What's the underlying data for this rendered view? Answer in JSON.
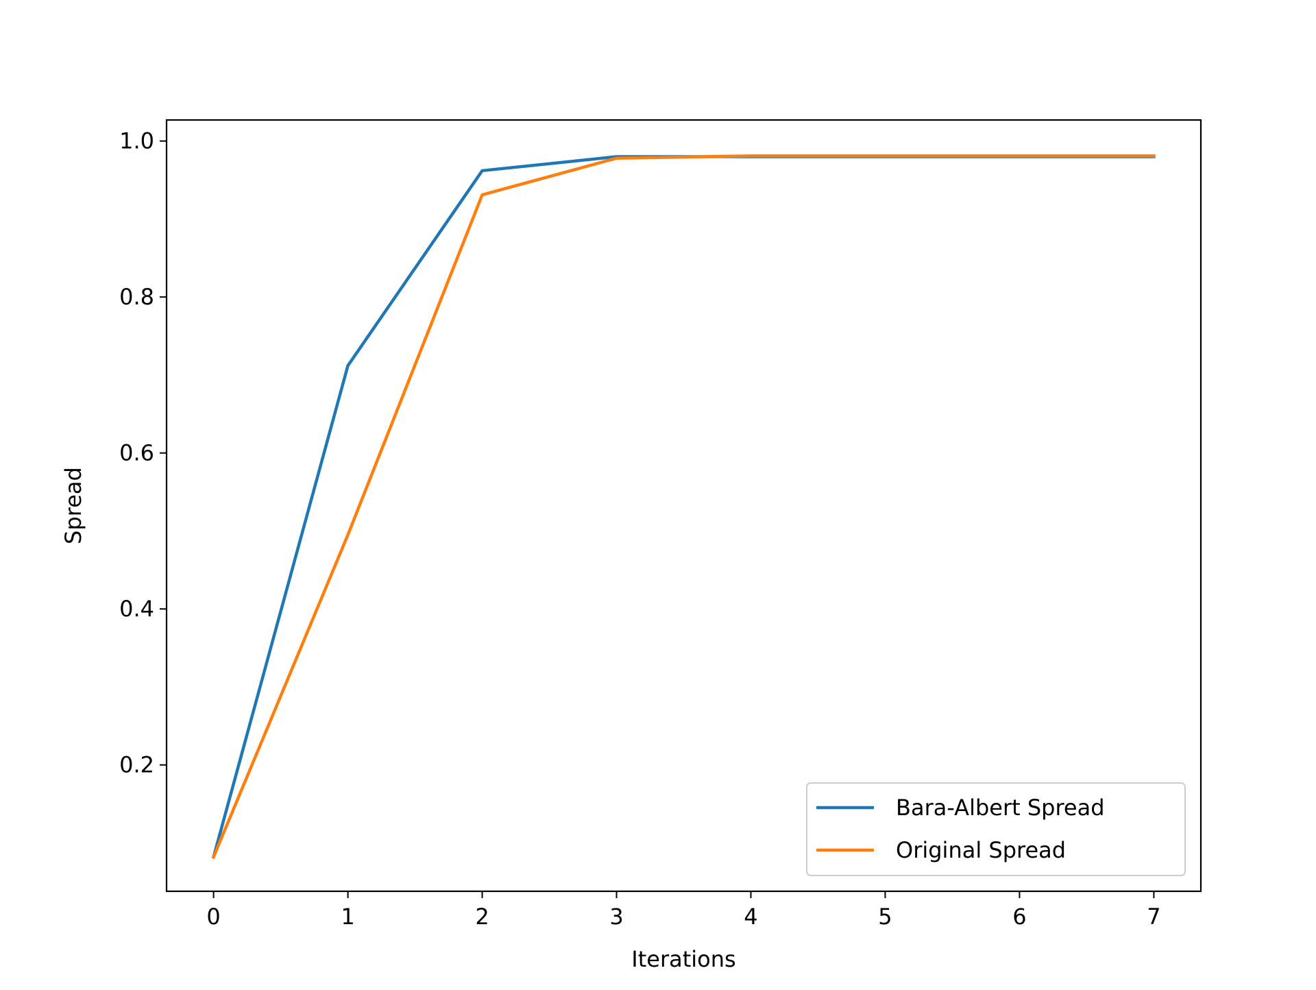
{
  "chart_data": {
    "type": "line",
    "title": "",
    "xlabel": "Iterations",
    "ylabel": "Spread",
    "x": [
      0,
      1,
      2,
      3,
      4,
      5,
      6,
      7
    ],
    "xlim": [
      -0.35,
      7.35
    ],
    "ylim": [
      0.038,
      1.027
    ],
    "xticks": [
      0,
      1,
      2,
      3,
      4,
      5,
      6,
      7
    ],
    "xtick_labels": [
      "0",
      "1",
      "2",
      "3",
      "4",
      "5",
      "6",
      "7"
    ],
    "yticks": [
      0.2,
      0.4,
      0.6,
      0.8,
      1.0
    ],
    "ytick_labels": [
      "0.2",
      "0.4",
      "0.6",
      "0.8",
      "1.0"
    ],
    "grid": false,
    "legend_position": "lower-right",
    "series": [
      {
        "name": "Bara-Albert Spread",
        "color": "#1f77b4",
        "values": [
          0.082,
          0.712,
          0.962,
          0.98,
          0.98,
          0.98,
          0.98,
          0.98
        ]
      },
      {
        "name": "Original Spread",
        "color": "#ff7f0e",
        "values": [
          0.082,
          0.495,
          0.931,
          0.978,
          0.981,
          0.981,
          0.981,
          0.981
        ]
      }
    ]
  }
}
